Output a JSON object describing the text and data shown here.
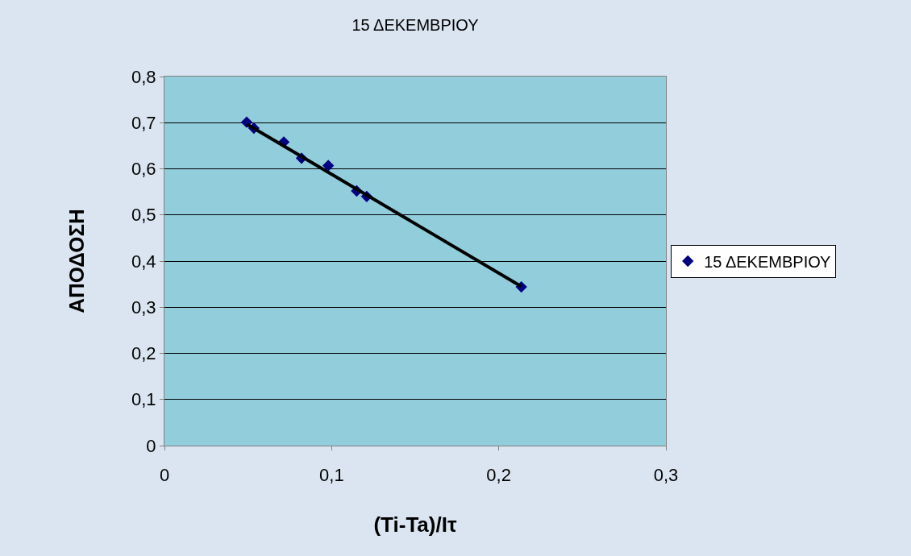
{
  "chart_data": {
    "type": "scatter",
    "title": "15 ΔΕΚΕΜΒΡΙΟΥ",
    "xlabel": "(Ti-Ta)/Iτ",
    "ylabel": "ΑΠΟΔΟΣΗ",
    "series": [
      {
        "name": "15 ΔΕΚΕΜΒΡΙΟΥ",
        "color": "#000080",
        "marker": "diamond",
        "x": [
          0.0492,
          0.0535,
          0.0714,
          0.082,
          0.098,
          0.115,
          0.121,
          0.2135
        ],
        "values": [
          0.701,
          0.688,
          0.658,
          0.623,
          0.607,
          0.552,
          0.54,
          0.344
        ]
      },
      {
        "type": "line",
        "color": "#000000",
        "marker": "none",
        "x": [
          0.0492,
          0.2135
        ],
        "values": [
          0.697,
          0.345
        ]
      }
    ],
    "xlim": [
      0,
      0.3
    ],
    "xticks": [
      0,
      {
        "value": 0.1,
        "label": "0,1"
      },
      {
        "value": 0.2,
        "label": "0,2"
      },
      {
        "value": 0.3,
        "label": "0,3"
      }
    ],
    "ylim": [
      0,
      0.8
    ],
    "yticks": [
      0,
      {
        "value": 0.1,
        "label": "0,1"
      },
      {
        "value": 0.2,
        "label": "0,2"
      },
      {
        "value": 0.3,
        "label": "0,3"
      },
      {
        "value": 0.4,
        "label": "0,4"
      },
      {
        "value": 0.5,
        "label": "0,5"
      },
      {
        "value": 0.6,
        "label": "0,6"
      },
      {
        "value": 0.7,
        "label": "0,7"
      },
      {
        "value": 0.8,
        "label": "0,8"
      }
    ],
    "grid": "y",
    "legend": "right"
  }
}
